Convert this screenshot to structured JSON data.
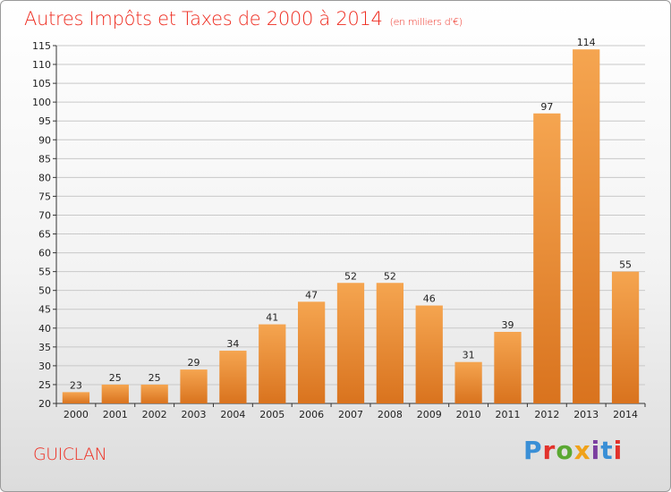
{
  "header": {
    "title": "Autres Impôts et Taxes de 2000 à 2014",
    "subtitle": "(en milliers d'€)"
  },
  "footer": {
    "commune": "GUICLAN",
    "brand": "Proxiti",
    "brand_colors": [
      "#3a8fd6",
      "#e2322b",
      "#5aa832",
      "#f0a21a",
      "#7b3fa0",
      "#3a8fd6",
      "#e2322b"
    ]
  },
  "colors": {
    "bar_light": "#f5a550",
    "bar_dark": "#d9731e",
    "accent_text": "#ee2b1f",
    "grid": "#c8c8c8"
  },
  "chart_data": {
    "type": "bar",
    "title": "Autres Impôts et Taxes de 2000 à 2014",
    "subtitle": "(en milliers d'€)",
    "categories": [
      "2000",
      "2001",
      "2002",
      "2003",
      "2004",
      "2005",
      "2006",
      "2007",
      "2008",
      "2009",
      "2010",
      "2011",
      "2012",
      "2013",
      "2014"
    ],
    "values": [
      23,
      25,
      25,
      29,
      34,
      41,
      47,
      52,
      52,
      46,
      31,
      39,
      97,
      114,
      55
    ],
    "ylim": [
      20,
      115
    ],
    "yticks": [
      20,
      25,
      30,
      35,
      40,
      45,
      50,
      55,
      60,
      65,
      70,
      75,
      80,
      85,
      90,
      95,
      100,
      105,
      110,
      115
    ],
    "grid": true,
    "xlabel": "",
    "ylabel": ""
  }
}
